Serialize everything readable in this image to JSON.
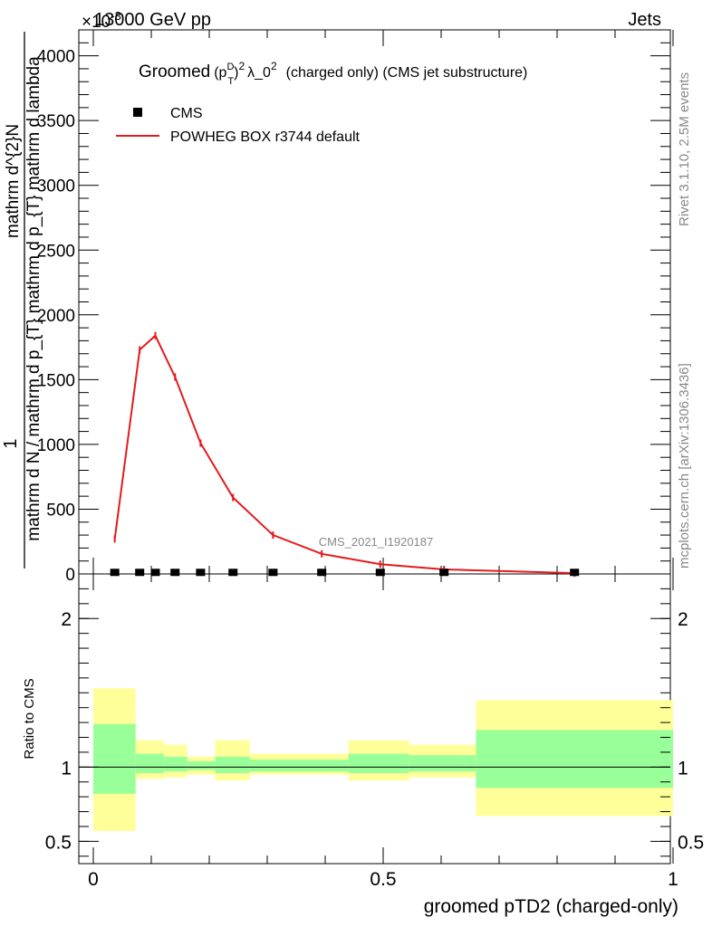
{
  "header": {
    "energy_label": "13000 GeV pp",
    "process_label": "Jets",
    "multiplier_label": "×10",
    "multiplier_exponent": "-3"
  },
  "title": {
    "prefix": "Groomed",
    "pt_sup": "D",
    "pt_sub": "T",
    "exp": "2",
    "lambda": "λ_0",
    "lambda_exp": "2",
    "suffix": "(charged only) (CMS jet substructure)"
  },
  "legend": {
    "data_label": "CMS",
    "mc_label": "POWHEG BOX r3744 default"
  },
  "watermark": "CMS_2021_I1920187",
  "side_labels": {
    "rivet": "Rivet 3.1.10,  2.5M events",
    "mcplots": "mcplots.cern.ch [arXiv:1306.3436]"
  },
  "y_axis_label": {
    "one": "1",
    "numerator": "mathrm d^{2}N",
    "denominator": "mathrm d N / mathrm d p_{T} mathrm d p_{T} mathrm d lambda"
  },
  "ratio_axis_label": "Ratio to CMS",
  "x_axis_label": "groomed pTD2 (charged-only)",
  "colors": {
    "mc_line": "#e41a1c",
    "band_inner": "#99ff99",
    "band_outer": "#ffff99",
    "data_marker": "#000000",
    "ratio_line": "#000000"
  },
  "chart_data": {
    "type": "line",
    "x_range": [
      0,
      1
    ],
    "main_y_range": [
      0,
      4200
    ],
    "main_y_ticks": [
      0,
      500,
      1000,
      1500,
      2000,
      2500,
      3000,
      3500,
      4000
    ],
    "main_y_tick_labels": [
      "0",
      "500",
      "1000",
      "1500",
      "2000",
      "2500",
      "3000",
      "3500",
      "4000"
    ],
    "x_ticks": [
      0,
      0.5,
      1
    ],
    "x_tick_labels": [
      "0",
      "0.5",
      "1"
    ],
    "ratio_y_range": [
      0.35,
      2.3
    ],
    "ratio_y_ticks": [
      0.5,
      1,
      2
    ],
    "ratio_y_tick_labels": [
      "0.5",
      "1",
      "2"
    ],
    "series": [
      {
        "name": "POWHEG BOX r3744 default",
        "x": [
          0.037,
          0.08,
          0.107,
          0.141,
          0.185,
          0.241,
          0.31,
          0.394,
          0.495,
          0.605,
          0.83
        ],
        "y": [
          270,
          1730,
          1840,
          1520,
          1010,
          590,
          300,
          155,
          75,
          35,
          6
        ]
      },
      {
        "name": "CMS",
        "x": [
          0.037,
          0.08,
          0.107,
          0.141,
          0.185,
          0.241,
          0.31,
          0.394,
          0.495,
          0.605,
          0.83
        ],
        "y": [
          5,
          5,
          5,
          5,
          5,
          5,
          5,
          5,
          5,
          5,
          5
        ]
      }
    ],
    "ratio_bands": [
      {
        "x0": 0.0,
        "x1": 0.073,
        "inner": [
          0.82,
          1.29
        ],
        "outer": [
          0.57,
          1.53
        ]
      },
      {
        "x0": 0.073,
        "x1": 0.097,
        "inner": [
          0.96,
          1.09
        ],
        "outer": [
          0.92,
          1.18
        ]
      },
      {
        "x0": 0.097,
        "x1": 0.122,
        "inner": [
          0.96,
          1.09
        ],
        "outer": [
          0.92,
          1.18
        ]
      },
      {
        "x0": 0.122,
        "x1": 0.162,
        "inner": [
          0.97,
          1.07
        ],
        "outer": [
          0.93,
          1.15
        ]
      },
      {
        "x0": 0.162,
        "x1": 0.21,
        "inner": [
          0.98,
          1.04
        ],
        "outer": [
          0.95,
          1.07
        ]
      },
      {
        "x0": 0.21,
        "x1": 0.27,
        "inner": [
          0.96,
          1.07
        ],
        "outer": [
          0.91,
          1.18
        ]
      },
      {
        "x0": 0.27,
        "x1": 0.35,
        "inner": [
          0.97,
          1.05
        ],
        "outer": [
          0.95,
          1.09
        ]
      },
      {
        "x0": 0.35,
        "x1": 0.44,
        "inner": [
          0.97,
          1.05
        ],
        "outer": [
          0.95,
          1.09
        ]
      },
      {
        "x0": 0.44,
        "x1": 0.545,
        "inner": [
          0.96,
          1.09
        ],
        "outer": [
          0.91,
          1.18
        ]
      },
      {
        "x0": 0.545,
        "x1": 0.66,
        "inner": [
          0.97,
          1.08
        ],
        "outer": [
          0.93,
          1.15
        ]
      },
      {
        "x0": 0.66,
        "x1": 1.0,
        "inner": [
          0.86,
          1.25
        ],
        "outer": [
          0.67,
          1.45
        ]
      }
    ]
  }
}
